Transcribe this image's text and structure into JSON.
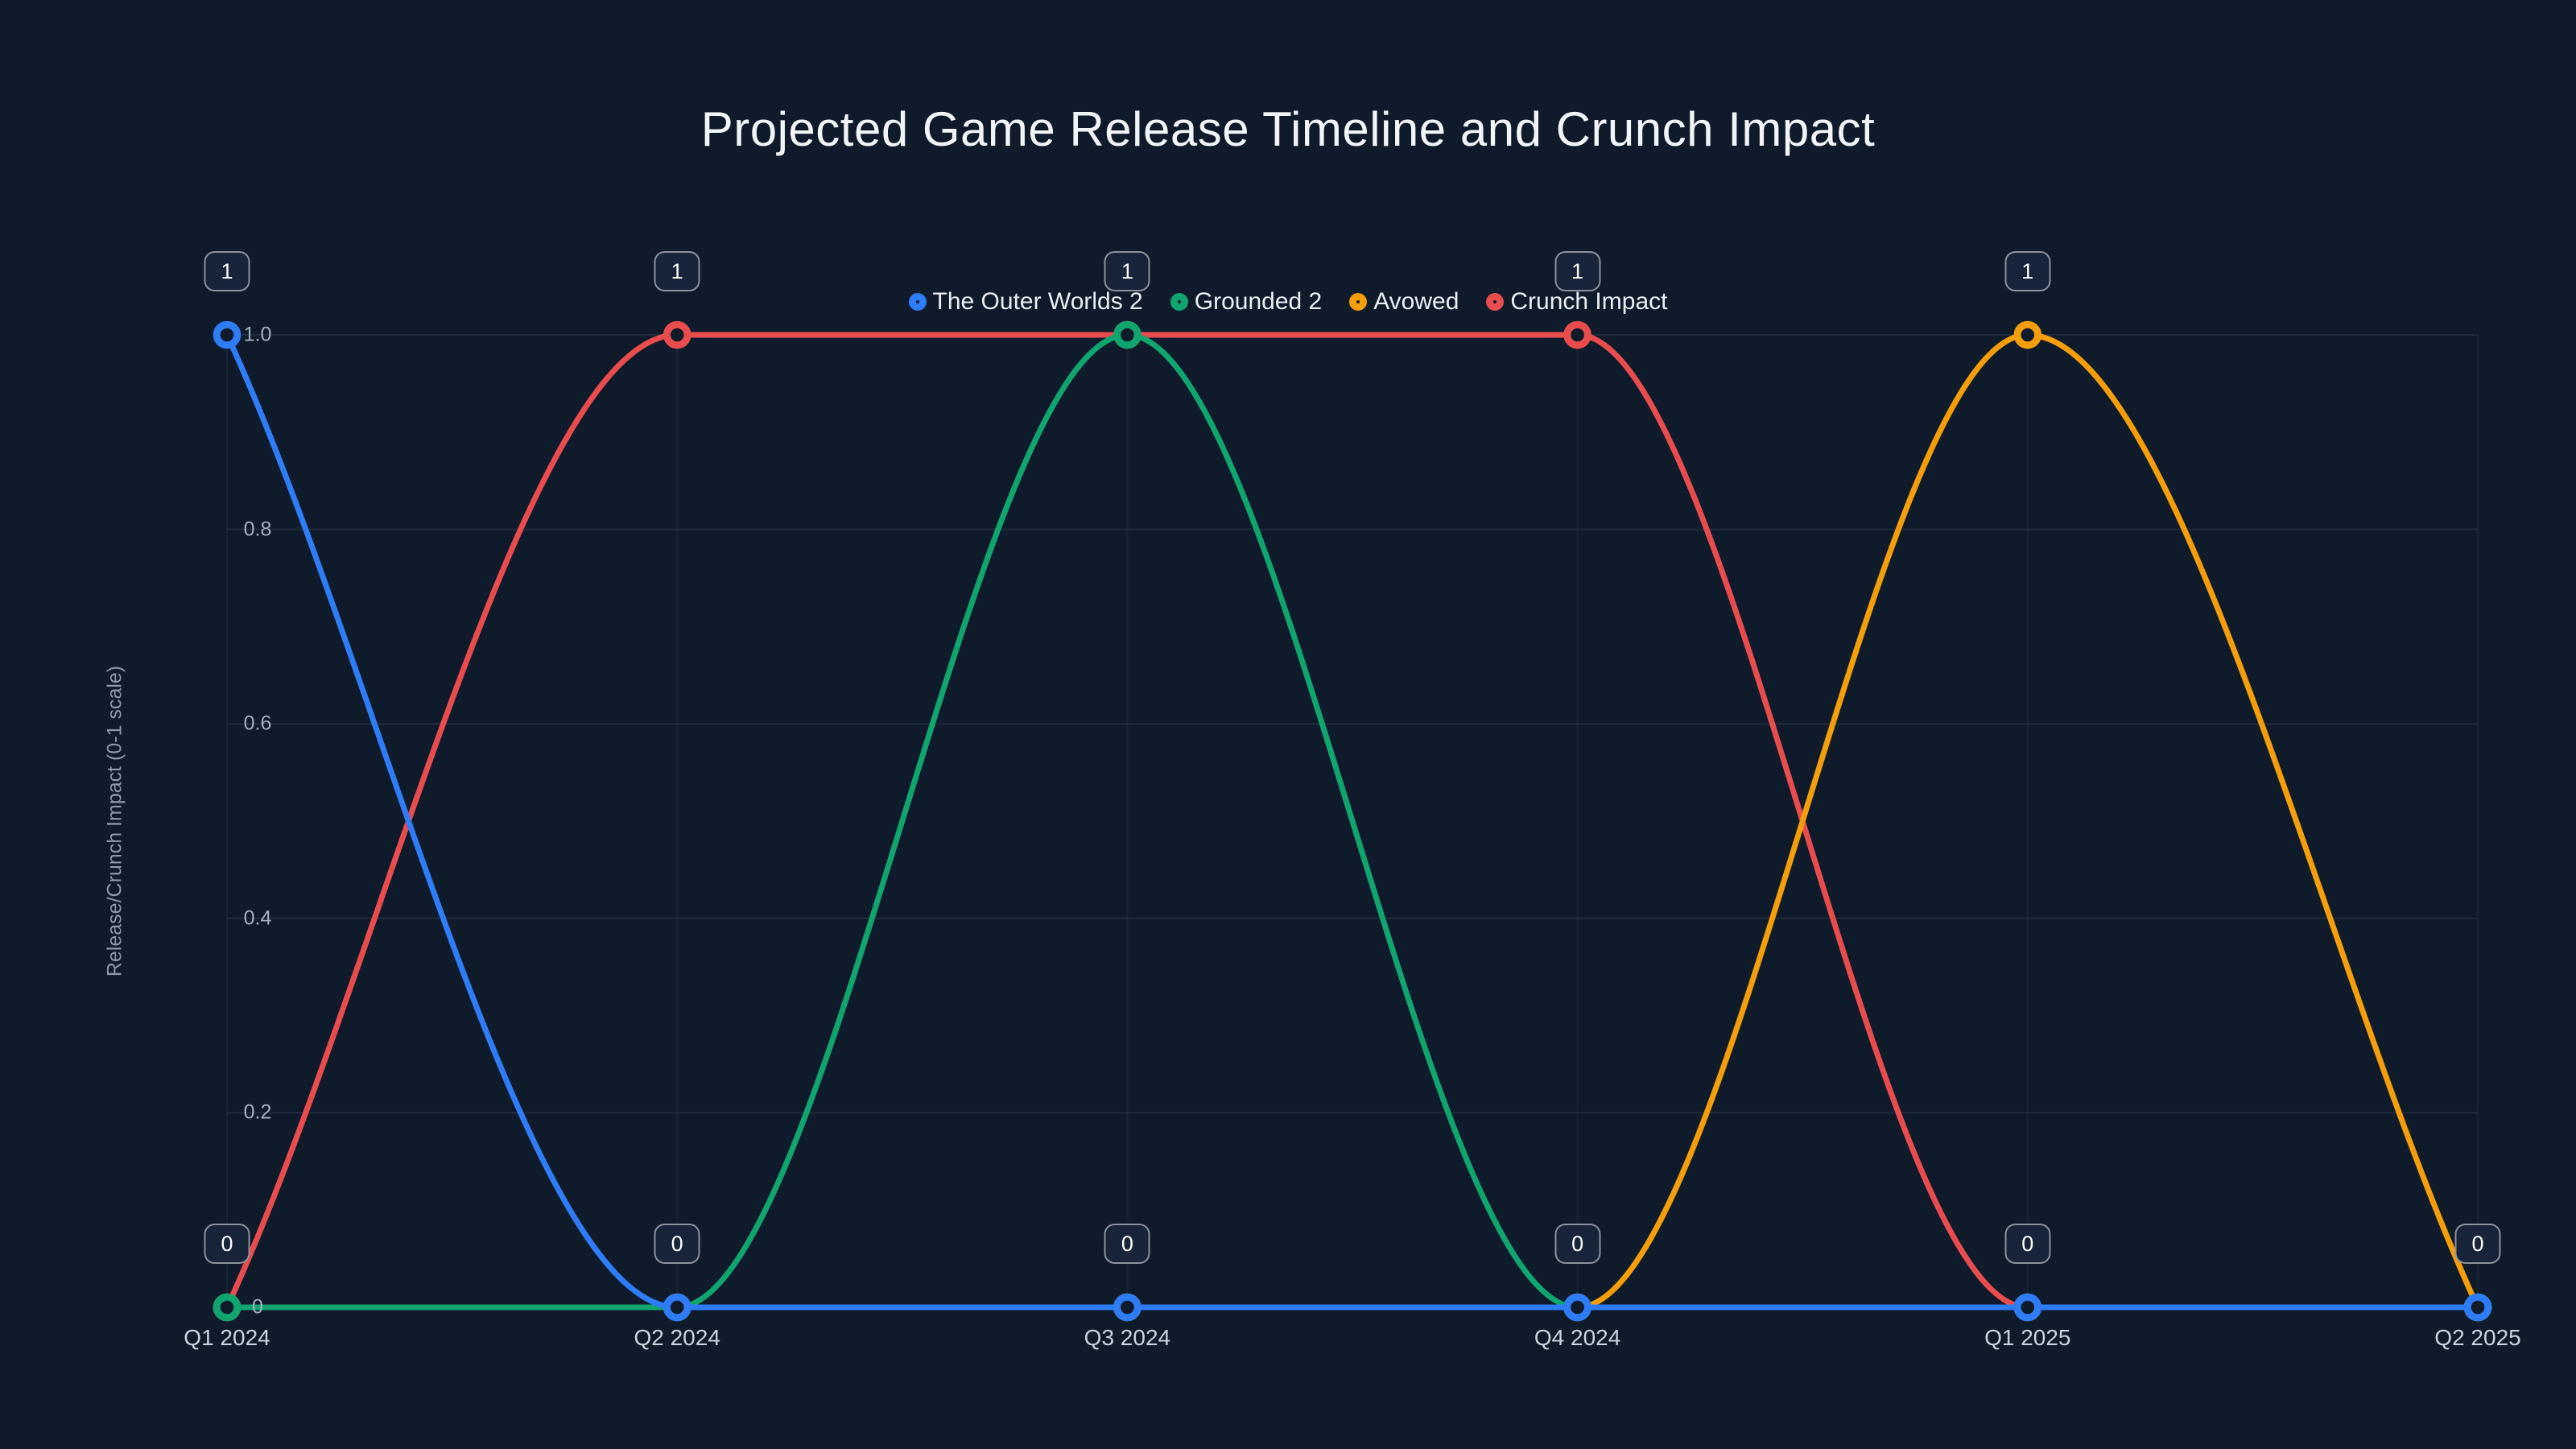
{
  "page": {
    "background": "#0f1a2b"
  },
  "chart_data": {
    "type": "line",
    "title": "Projected Game Release Timeline and Crunch Impact",
    "xlabel": "",
    "ylabel": "Release/Crunch Impact (0-1 scale)",
    "categories": [
      "Q1 2024",
      "Q2 2024",
      "Q3 2024",
      "Q4 2024",
      "Q1 2025",
      "Q2 2025"
    ],
    "series": [
      {
        "name": "The Outer Worlds 2",
        "color": "#2e7cf6",
        "values": [
          1,
          0,
          0,
          0,
          0,
          0
        ]
      },
      {
        "name": "Grounded 2",
        "color": "#10a56e",
        "values": [
          0,
          0,
          1,
          0,
          0,
          0
        ]
      },
      {
        "name": "Avowed",
        "color": "#f59e0b",
        "values": [
          0,
          0,
          0,
          0,
          1,
          0
        ]
      },
      {
        "name": "Crunch Impact",
        "color": "#e84c4c",
        "values": [
          0,
          1,
          1,
          1,
          0,
          0
        ]
      }
    ],
    "ylim": [
      0,
      1
    ],
    "y_ticks": [
      0,
      0.2,
      0.4,
      0.6,
      0.8,
      1
    ],
    "y_tick_labels": [
      "0",
      "0.2",
      "0.4",
      "0.6",
      "0.8",
      "1.0"
    ],
    "grid": true,
    "legend_position": "top",
    "curve": "smooth",
    "marker_style": "ring",
    "point_badge_values": {
      "top": "1",
      "bottom": "0"
    }
  }
}
